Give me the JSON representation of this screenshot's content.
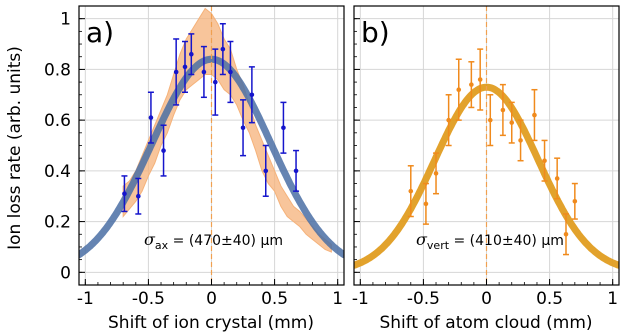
{
  "chart_data": [
    {
      "type": "line",
      "panel_label": "a)",
      "xlabel": "Shift of ion crystal (mm)",
      "ylabel": "Ion loss rate (arb. units)",
      "xlim": [
        -1.05,
        1.05
      ],
      "ylim": [
        -0.05,
        1.05
      ],
      "xticks": [
        -1,
        -0.5,
        0,
        0.5,
        1
      ],
      "xtick_labels": [
        "-1",
        "-0.5",
        "0",
        "0.5",
        "1"
      ],
      "yticks": [
        0,
        0.2,
        0.4,
        0.6,
        0.8,
        1
      ],
      "ytick_labels": [
        "0",
        "0.2",
        "0.4",
        "0.6",
        "0.8",
        "1"
      ],
      "grid": true,
      "annotation": {
        "symbol": "σ",
        "subscript": "ax",
        "text": " = (470±40) µm"
      },
      "vline_x": 0,
      "fit": {
        "amplitude": 0.84,
        "center": 0.0,
        "sigma": 0.47,
        "color": "#4a6fa5"
      },
      "band": {
        "color": "#f5b27a",
        "x": [
          -0.7,
          -0.65,
          -0.6,
          -0.55,
          -0.5,
          -0.45,
          -0.4,
          -0.35,
          -0.3,
          -0.25,
          -0.2,
          -0.15,
          -0.1,
          -0.05,
          0.0,
          0.05,
          0.1,
          0.15,
          0.2,
          0.25,
          0.3,
          0.35,
          0.4,
          0.45,
          0.5,
          0.55,
          0.6,
          0.65,
          0.7,
          0.75,
          0.8,
          0.85,
          0.9,
          0.95
        ],
        "lower": [
          0.22,
          0.25,
          0.28,
          0.32,
          0.38,
          0.43,
          0.5,
          0.55,
          0.62,
          0.68,
          0.72,
          0.74,
          0.76,
          0.78,
          0.78,
          0.76,
          0.72,
          0.7,
          0.66,
          0.6,
          0.55,
          0.48,
          0.4,
          0.35,
          0.32,
          0.26,
          0.22,
          0.2,
          0.18,
          0.15,
          0.13,
          0.11,
          0.09,
          0.08
        ],
        "upper": [
          0.34,
          0.36,
          0.4,
          0.46,
          0.52,
          0.58,
          0.64,
          0.7,
          0.78,
          0.86,
          0.92,
          0.96,
          1.0,
          1.04,
          1.02,
          0.98,
          0.92,
          0.88,
          0.8,
          0.74,
          0.66,
          0.58,
          0.52,
          0.46,
          0.4,
          0.34,
          0.3,
          0.26,
          0.24,
          0.21,
          0.18,
          0.15,
          0.13,
          0.11
        ]
      },
      "series": [
        {
          "color": "#1515cc",
          "x": [
            -0.69,
            -0.58,
            -0.48,
            -0.38,
            -0.28,
            -0.21,
            -0.16,
            -0.06,
            0.03,
            0.09,
            0.15,
            0.25,
            0.32,
            0.43,
            0.57,
            0.67
          ],
          "y": [
            0.31,
            0.3,
            0.61,
            0.48,
            0.79,
            0.81,
            0.86,
            0.79,
            0.75,
            0.88,
            0.79,
            0.57,
            0.7,
            0.4,
            0.57,
            0.4
          ],
          "err": [
            0.07,
            0.07,
            0.1,
            0.1,
            0.13,
            0.1,
            0.08,
            0.1,
            0.13,
            0.1,
            0.12,
            0.11,
            0.11,
            0.1,
            0.1,
            0.08
          ]
        }
      ]
    },
    {
      "type": "line",
      "panel_label": "b)",
      "xlabel": "Shift of atom cloud (mm)",
      "xlim": [
        -1.05,
        1.05
      ],
      "ylim": [
        -0.05,
        1.05
      ],
      "xticks": [
        -1,
        -0.5,
        0,
        0.5,
        1
      ],
      "xtick_labels": [
        "-1",
        "-0.5",
        "0",
        "0.5",
        "1"
      ],
      "yticks": [
        0,
        0.2,
        0.4,
        0.6,
        0.8,
        1
      ],
      "grid": true,
      "annotation": {
        "symbol": "σ",
        "subscript": "vert",
        "text": " = (410±40) µm"
      },
      "vline_x": 0,
      "fit": {
        "amplitude": 0.73,
        "center": 0.0,
        "sigma": 0.41,
        "color": "#e09a1a"
      },
      "series": [
        {
          "color": "#f08a1c",
          "x": [
            -0.6,
            -0.48,
            -0.4,
            -0.3,
            -0.22,
            -0.12,
            -0.05,
            0.03,
            0.13,
            0.2,
            0.27,
            0.38,
            0.46,
            0.56,
            0.63,
            0.7
          ],
          "y": [
            0.32,
            0.27,
            0.39,
            0.6,
            0.72,
            0.74,
            0.76,
            0.6,
            0.64,
            0.59,
            0.52,
            0.62,
            0.44,
            0.37,
            0.15,
            0.28
          ],
          "err": [
            0.1,
            0.08,
            0.08,
            0.1,
            0.12,
            0.09,
            0.12,
            0.1,
            0.1,
            0.08,
            0.08,
            0.1,
            0.08,
            0.08,
            0.08,
            0.07
          ]
        }
      ]
    }
  ]
}
